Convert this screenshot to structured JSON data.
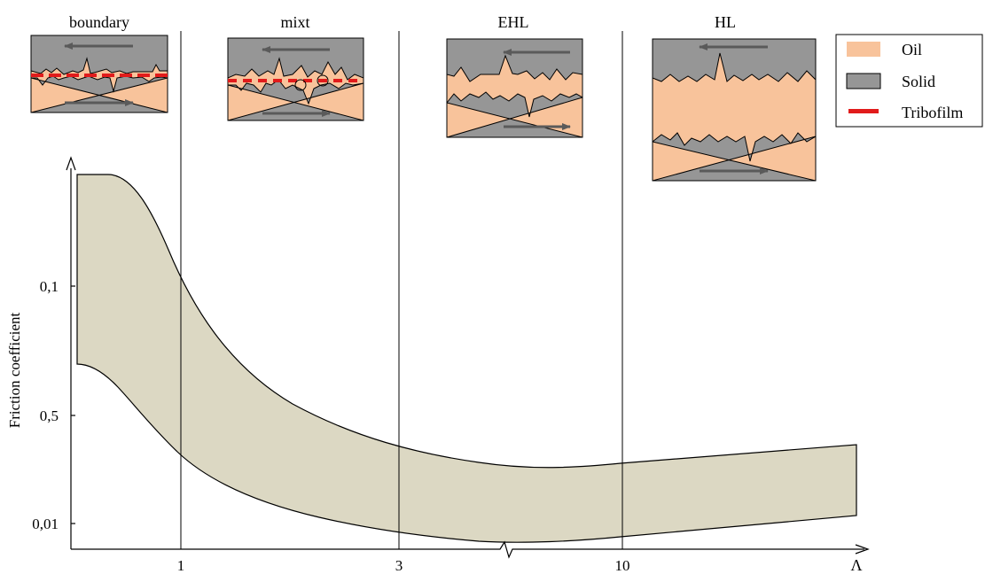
{
  "regimes": [
    {
      "label": "boundary"
    },
    {
      "label": "mixt"
    },
    {
      "label": "EHL"
    },
    {
      "label": "HL"
    }
  ],
  "legend": {
    "items": [
      {
        "label": "Oil",
        "color": "#f8c39b"
      },
      {
        "label": "Solid",
        "color": "#969696"
      },
      {
        "label": "Tribofilm",
        "color": "#e11b1b"
      }
    ]
  },
  "axes": {
    "ylabel": "Friction coefficient",
    "yticks": [
      "0,1",
      "0,5",
      "0,01"
    ],
    "xticks": [
      "1",
      "3",
      "10"
    ],
    "xend_label": "Λ"
  },
  "colors": {
    "band": "#dcd8c3",
    "solid": "#969696",
    "oil": "#f8c39b",
    "tribofilm": "#e11b1b",
    "arrow": "#5a5a5a"
  }
}
